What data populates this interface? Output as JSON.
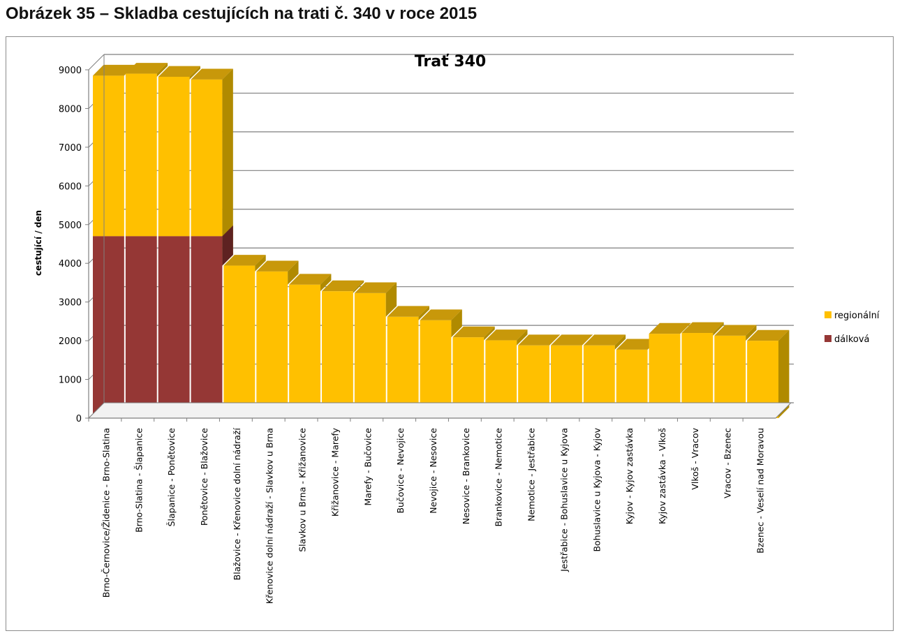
{
  "document": {
    "figure_caption": "Obrázek 35 – Skladba cestujících na trati č. 340 v roce 2015"
  },
  "colors": {
    "regionalni": "#FFC000",
    "regionalni_top": "#C8980A",
    "regionalni_side": "#B08A00",
    "dalkova": "#953735",
    "dalkova_side": "#5E2221",
    "grid": "#7F7F7F",
    "axis": "#7F7F7F"
  },
  "chart_data": {
    "type": "bar",
    "stacked": true,
    "three_d": true,
    "title": "Trať 340",
    "xlabel": "",
    "ylabel": "cestující / den",
    "ylim": [
      0,
      9000
    ],
    "yticks": [
      0,
      1000,
      2000,
      3000,
      4000,
      5000,
      6000,
      7000,
      8000,
      9000
    ],
    "grid": true,
    "legend_position": "right",
    "categories": [
      "Brno-Černovice/Židenice - Brno-Slatina",
      "Brno-Slatina - Šlapanice",
      "Šlapanice - Ponětovice",
      "Ponětovice - Blažovice",
      "Blažovice - Křenovice dolní nádraží",
      "Křenovice dolní nádraží - Slavkov u Brna",
      "Slavkov u Brna - Křižanovice",
      "Křižanovice - Marefy",
      "Marefy - Bučovice",
      "Bučovice - Nevojice",
      "Nevojice - Nesovice",
      "Nesovice - Brankovice",
      "Brankovice - Nemotice",
      "Nemotice - Jestřabice",
      "Jestřabice - Bohuslavice u Kyjova",
      "Bohuslavice u Kyjova - Kyjov",
      "Kyjov - Kyjov zastávka",
      "Kyjov zastávka - Vlkoš",
      "Vlkoš - Vracov",
      "Vracov - Bzenec",
      "Bzenec - Veselí nad Moravou"
    ],
    "series": [
      {
        "name": "dálková",
        "values": [
          4700,
          4700,
          4700,
          4700,
          0,
          0,
          0,
          0,
          0,
          0,
          0,
          0,
          0,
          0,
          0,
          0,
          0,
          0,
          0,
          0,
          0
        ]
      },
      {
        "name": "regionální",
        "values": [
          4150,
          4200,
          4120,
          4050,
          3940,
          3790,
          3450,
          3280,
          3230,
          2620,
          2530,
          2090,
          2010,
          1880,
          1880,
          1880,
          1770,
          2180,
          2200,
          2130,
          2000
        ]
      }
    ],
    "legend": [
      {
        "name": "regionální",
        "color_key": "regionalni"
      },
      {
        "name": "dálková",
        "color_key": "dalkova"
      }
    ]
  }
}
